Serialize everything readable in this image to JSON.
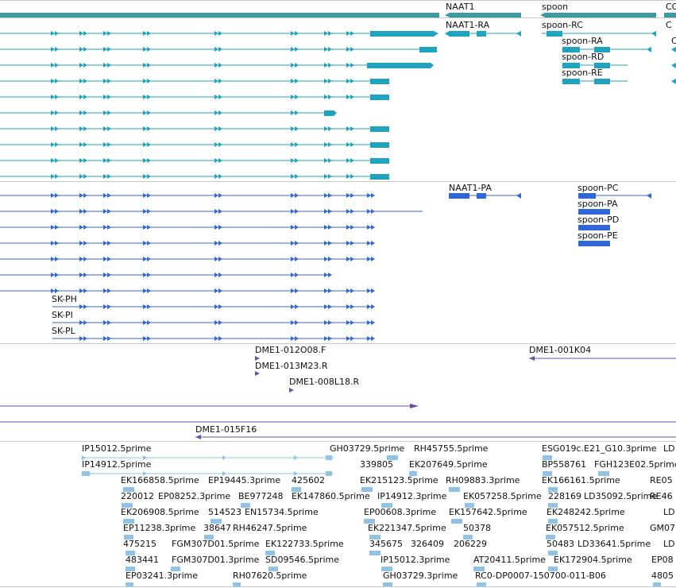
{
  "colors": {
    "transcript": "#1fa3bf",
    "protein": "#2f66d8",
    "bac_clone": "#6a4fa8",
    "est": "#8fc3e8",
    "gene": "#3a9aa0",
    "divider": "#c8c8c8"
  },
  "icons": [
    "direction-arrow-icon"
  ],
  "gene_track": {
    "labels": [
      "NAAT1",
      "spoon",
      "CG"
    ]
  },
  "transcript_track": {
    "labels": [
      "NAAT1-RA",
      "spoon-RC",
      "spoon-RA",
      "spoon-RD",
      "spoon-RE",
      "C",
      "C"
    ]
  },
  "protein_track": {
    "labels": [
      "NAAT1-PA",
      "spoon-PC",
      "spoon-PA",
      "spoon-PD",
      "spoon-PE",
      "SK-PH",
      "SK-PI",
      "SK-PL"
    ]
  },
  "bac_track": {
    "labels": [
      "DME1-012O08.F",
      "DME1-013M23.R",
      "DME1-008L18.R",
      "DME1-001K04",
      "DME1-015F16"
    ]
  },
  "est_track": {
    "labels": [
      "IP15012.5prime",
      "GH03729.5prime",
      "RH45755.5prime",
      "ESG019c.E21_G10.3prime",
      "LD",
      "IP14912.5prime",
      "339805",
      "EK207649.5prime",
      "BP558761",
      "FGH123E02.5prime",
      "EK166858.5prime",
      "EP19445.3prime",
      "425602",
      "EK215123.5prime",
      "RH09883.3prime",
      "EK166161.5prime",
      "RE05",
      "220012",
      "EP08252.3prime",
      "BE977248",
      "EK147860.5prime",
      "IP14912.3prime",
      "EK057258.5prime",
      "228169",
      "LD35092.5prime",
      "RE46",
      "EK206908.5prime",
      "514523",
      "EN15734.5prime",
      "EP00608.3prime",
      "EK157642.5prime",
      "EK248242.5prime",
      "LD",
      "EP11238.3prime",
      "38647",
      "RH46247.5prime",
      "EK221347.5prime",
      "50378",
      "EK057512.5prime",
      "GM07",
      "475215",
      "FGM307D01.5prime",
      "EK122733.5prime",
      "345675",
      "326409",
      "206229",
      "50483",
      "LD33641.5prime",
      "LD",
      "483441",
      "FGM307D01.3prime",
      "SD09546.5prime",
      "IP15012.3prime",
      "AT20411.5prime",
      "EK172904.5prime",
      "EP08",
      "EP03241.3prime",
      "RH07620.5prime",
      "GH03729.3prime",
      "RC0-DP0007-150700-011-B06",
      "4805"
    ]
  }
}
